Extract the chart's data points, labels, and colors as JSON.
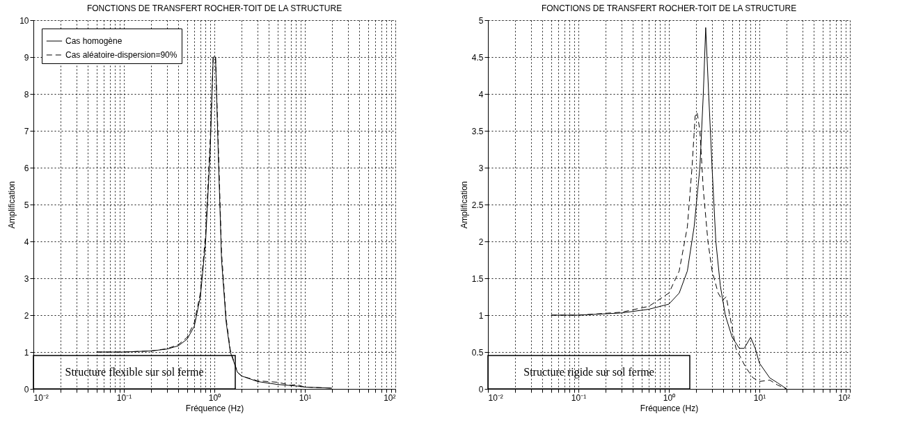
{
  "chart_data": [
    {
      "type": "line",
      "title": "FONCTIONS DE TRANSFERT ROCHER-TOIT DE LA STRUCTURE",
      "xlabel": "Fréquence (Hz)",
      "ylabel": "Amplification",
      "log": "x",
      "grid": true,
      "legend": "top left",
      "xlim": [
        0.01,
        100
      ],
      "ylim": [
        0,
        10
      ],
      "xticks": [
        {
          "value": 0.01,
          "label": "10⁻²"
        },
        {
          "value": 0.02,
          "label": null
        },
        {
          "value": 0.03,
          "label": null
        },
        {
          "value": 0.04,
          "label": null
        },
        {
          "value": 0.05,
          "label": null
        },
        {
          "value": 0.06,
          "label": null
        },
        {
          "value": 0.07,
          "label": null
        },
        {
          "value": 0.08,
          "label": null
        },
        {
          "value": 0.09,
          "label": null
        },
        {
          "value": 0.1,
          "label": "10⁻¹"
        },
        {
          "value": 0.2,
          "label": null
        },
        {
          "value": 0.3,
          "label": null
        },
        {
          "value": 0.4,
          "label": null
        },
        {
          "value": 0.5,
          "label": null
        },
        {
          "value": 0.6,
          "label": null
        },
        {
          "value": 0.7,
          "label": null
        },
        {
          "value": 0.8,
          "label": null
        },
        {
          "value": 0.9,
          "label": null
        },
        {
          "value": 1,
          "label": "10⁰"
        },
        {
          "value": 2,
          "label": null
        },
        {
          "value": 3,
          "label": null
        },
        {
          "value": 4,
          "label": null
        },
        {
          "value": 5,
          "label": null
        },
        {
          "value": 6,
          "label": null
        },
        {
          "value": 7,
          "label": null
        },
        {
          "value": 8,
          "label": null
        },
        {
          "value": 9,
          "label": null
        },
        {
          "value": 10,
          "label": "10¹"
        },
        {
          "value": 20,
          "label": null
        },
        {
          "value": 30,
          "label": null
        },
        {
          "value": 40,
          "label": null
        },
        {
          "value": 50,
          "label": null
        },
        {
          "value": 60,
          "label": null
        },
        {
          "value": 70,
          "label": null
        },
        {
          "value": 80,
          "label": null
        },
        {
          "value": 90,
          "label": null
        },
        {
          "value": 100,
          "label": "10²"
        }
      ],
      "yticks": [
        0,
        1,
        2,
        3,
        4,
        5,
        6,
        7,
        8,
        9,
        10
      ],
      "annotations": [
        "Structure flexible sur sol ferme"
      ],
      "series": [
        {
          "name": "Cas homogène",
          "color": "#000000",
          "line_style": "solid",
          "x": [
            0.05,
            0.1,
            0.2,
            0.3,
            0.4,
            0.5,
            0.6,
            0.7,
            0.8,
            0.9,
            0.97,
            1.03,
            1.1,
            1.2,
            1.35,
            1.5,
            1.8,
            2,
            3,
            5,
            8,
            10,
            20
          ],
          "values": [
            1.0,
            1.0,
            1.03,
            1.08,
            1.17,
            1.35,
            1.7,
            2.5,
            4.0,
            6.5,
            9.0,
            9.0,
            6.5,
            3.5,
            1.8,
            1.0,
            0.45,
            0.35,
            0.2,
            0.12,
            0.08,
            0.05,
            0.02
          ]
        },
        {
          "name": "Cas aléatoire-dispersion=90%",
          "color": "#000000",
          "line_style": "dashed",
          "x": [
            0.05,
            0.1,
            0.2,
            0.3,
            0.4,
            0.5,
            0.6,
            0.7,
            0.8,
            0.9,
            0.97,
            1.03,
            1.1,
            1.2,
            1.35,
            1.5,
            1.8,
            2,
            3,
            5,
            7,
            8,
            10,
            20
          ],
          "values": [
            1.0,
            1.0,
            1.03,
            1.09,
            1.2,
            1.4,
            1.8,
            2.6,
            4.2,
            6.8,
            9.0,
            9.0,
            6.8,
            3.7,
            1.9,
            1.05,
            0.45,
            0.35,
            0.22,
            0.18,
            0.1,
            0.12,
            0.05,
            0.02
          ]
        }
      ]
    },
    {
      "type": "line",
      "title": "FONCTIONS DE TRANSFERT ROCHER-TOIT DE LA STRUCTURE",
      "xlabel": "Fréquence (Hz)",
      "ylabel": "Amplification",
      "log": "x",
      "grid": true,
      "legend": "top left",
      "xlim": [
        0.01,
        100
      ],
      "ylim": [
        0,
        5
      ],
      "xticks": [
        {
          "value": 0.01,
          "label": "10⁻²"
        },
        {
          "value": 0.02,
          "label": null
        },
        {
          "value": 0.03,
          "label": null
        },
        {
          "value": 0.04,
          "label": null
        },
        {
          "value": 0.05,
          "label": null
        },
        {
          "value": 0.06,
          "label": null
        },
        {
          "value": 0.07,
          "label": null
        },
        {
          "value": 0.08,
          "label": null
        },
        {
          "value": 0.09,
          "label": null
        },
        {
          "value": 0.1,
          "label": "10⁻¹"
        },
        {
          "value": 0.2,
          "label": null
        },
        {
          "value": 0.3,
          "label": null
        },
        {
          "value": 0.4,
          "label": null
        },
        {
          "value": 0.5,
          "label": null
        },
        {
          "value": 0.6,
          "label": null
        },
        {
          "value": 0.7,
          "label": null
        },
        {
          "value": 0.8,
          "label": null
        },
        {
          "value": 0.9,
          "label": null
        },
        {
          "value": 1,
          "label": "10⁰"
        },
        {
          "value": 2,
          "label": null
        },
        {
          "value": 3,
          "label": null
        },
        {
          "value": 4,
          "label": null
        },
        {
          "value": 5,
          "label": null
        },
        {
          "value": 6,
          "label": null
        },
        {
          "value": 7,
          "label": null
        },
        {
          "value": 8,
          "label": null
        },
        {
          "value": 9,
          "label": null
        },
        {
          "value": 10,
          "label": "10¹"
        },
        {
          "value": 20,
          "label": null
        },
        {
          "value": 30,
          "label": null
        },
        {
          "value": 40,
          "label": null
        },
        {
          "value": 50,
          "label": null
        },
        {
          "value": 60,
          "label": null
        },
        {
          "value": 70,
          "label": null
        },
        {
          "value": 80,
          "label": null
        },
        {
          "value": 90,
          "label": null
        },
        {
          "value": 100,
          "label": "10²"
        }
      ],
      "yticks": [
        0,
        0.5,
        1,
        1.5,
        2,
        2.5,
        3,
        3.5,
        4,
        4.5,
        5
      ],
      "annotations": [
        "Structure rigide sur sol ferme"
      ],
      "series": [
        {
          "name": "Cas homogène",
          "color": "#000000",
          "line_style": "solid",
          "x": [
            0.05,
            0.1,
            0.3,
            0.6,
            1.0,
            1.3,
            1.6,
            1.9,
            2.2,
            2.4,
            2.55,
            2.75,
            3.0,
            3.3,
            3.7,
            4.2,
            5,
            6,
            6.8,
            8,
            9,
            10,
            13,
            16,
            20
          ],
          "values": [
            1.0,
            1.0,
            1.03,
            1.08,
            1.15,
            1.3,
            1.6,
            2.2,
            3.0,
            4.0,
            4.9,
            4.0,
            3.0,
            2.0,
            1.4,
            1.0,
            0.7,
            0.55,
            0.55,
            0.7,
            0.55,
            0.35,
            0.15,
            0.08,
            0.0
          ]
        },
        {
          "name": "Cas aléatoire-dispersion=90%",
          "color": "#000000",
          "line_style": "dashed",
          "x": [
            0.05,
            0.1,
            0.3,
            0.6,
            1.0,
            1.3,
            1.6,
            1.8,
            1.95,
            2.05,
            2.2,
            2.4,
            2.7,
            3.0,
            3.5,
            3.9,
            4.3,
            4.7,
            5.5,
            7,
            8.5,
            10,
            13,
            16,
            20
          ],
          "values": [
            1.0,
            1.0,
            1.04,
            1.12,
            1.3,
            1.6,
            2.2,
            3.0,
            3.7,
            3.75,
            3.5,
            2.7,
            2.0,
            1.6,
            1.3,
            1.2,
            1.25,
            1.0,
            0.55,
            0.3,
            0.15,
            0.1,
            0.12,
            0.05,
            0.0
          ]
        }
      ]
    }
  ]
}
